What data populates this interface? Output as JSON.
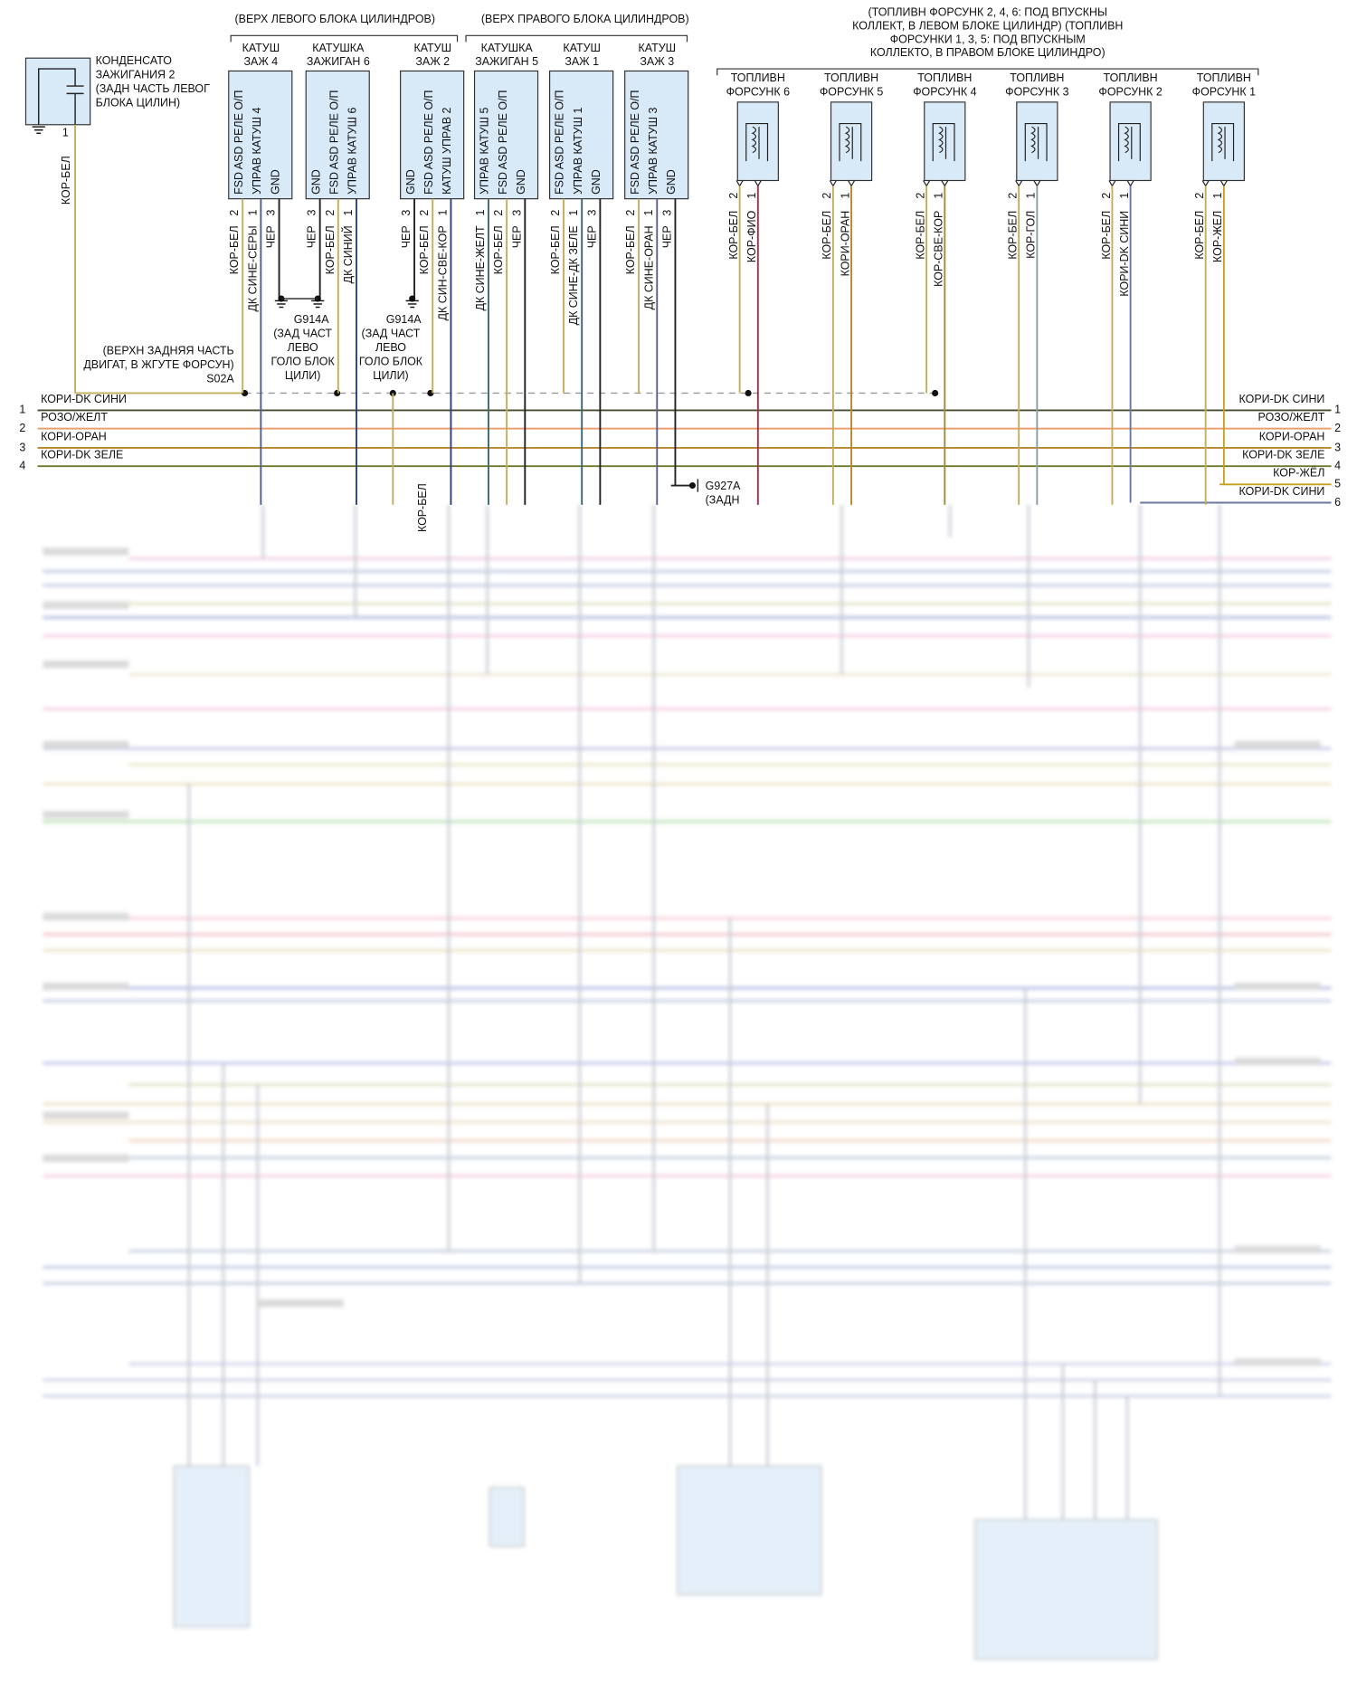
{
  "capacitor": {
    "label": [
      "КОНДЕНСАТО",
      "ЗАЖИГАНИЯ 2",
      "(ЗАДН ЧАСТЬ ЛЕВОГ",
      "БЛОКА ЦИЛИН)"
    ],
    "pin": "1",
    "wire": "КОР-БЕЛ",
    "color": "#c4ad5c"
  },
  "brackets": {
    "left_bank": "(ВЕРХ ЛЕВОГО БЛОКА ЦИЛИНДРОВ)",
    "right_bank": "(ВЕРХ ПРАВОГО БЛОКА ЦИЛИНДРОВ)",
    "injectors": [
      "(ТОПЛИВН ФОРСУНК 2, 4, 6: ПОД ВПУСКНЫ",
      "КОЛЛЕКТ, В ЛЕВОМ БЛОКЕ ЦИЛИНДР) (ТОПЛИВН",
      "ФОРСУНКИ 1, 3, 5: ПОД ВПУСКНЫМ",
      "КОЛЛЕКТО, В ПРАВОМ БЛОКЕ ЦИЛИНДРО)"
    ]
  },
  "coils": [
    {
      "name": [
        "КАТУШ",
        "ЗАЖ 4"
      ],
      "pins": [
        {
          "label": "FSD ASD РЕЛЕ О/П",
          "number": "2",
          "wire": "КОР-БЕЛ",
          "color": "#c4ad5c"
        },
        {
          "label": "УПРАВ КАТУШ 4",
          "number": "1",
          "wire": "ДК СИНЕ-СЕРЫ",
          "color": "#4a5c9c"
        },
        {
          "label": "GND",
          "number": "3",
          "wire": "ЧЕР",
          "color": "#222222"
        }
      ]
    },
    {
      "name": [
        "КАТУШКА",
        "ЗАЖИГАН 6"
      ],
      "pins": [
        {
          "label": "GND",
          "number": "3",
          "wire": "ЧЕР",
          "color": "#222222"
        },
        {
          "label": "FSD ASD РЕЛЕ О/П",
          "number": "2",
          "wire": "КОР-БЕЛ",
          "color": "#c4ad5c"
        },
        {
          "label": "УПРАВ КАТУШ 6",
          "number": "1",
          "wire": "ДК СИНИЙ",
          "color": "#2a3c8c"
        }
      ]
    },
    {
      "name": [
        "КАТУШ",
        "ЗАЖ 2"
      ],
      "pins": [
        {
          "label": "GND",
          "number": "3",
          "wire": "ЧЕР",
          "color": "#222222"
        },
        {
          "label": "FSD ASD РЕЛЕ О/П",
          "number": "2",
          "wire": "КОР-БЕЛ",
          "color": "#c4ad5c"
        },
        {
          "label": "КАТУШ УПРАВ 2",
          "number": "1",
          "wire": "ДК СИН-СВЕ-КОР",
          "color": "#2a3c8c"
        }
      ]
    },
    {
      "name": [
        "КАТУШКА",
        "ЗАЖИГАН 5"
      ],
      "pins": [
        {
          "label": "УПРАВ КАТУШ 5",
          "number": "1",
          "wire": "ДК СИНЕ-ЖЕЛТ",
          "color": "#3a6e6a"
        },
        {
          "label": "FSD ASD РЕЛЕ О/П",
          "number": "2",
          "wire": "КОР-БЕЛ",
          "color": "#c4ad5c"
        },
        {
          "label": "GND",
          "number": "3",
          "wire": "ЧЕР",
          "color": "#222222"
        }
      ]
    },
    {
      "name": [
        "КАТУШ",
        "ЗАЖ 1"
      ],
      "pins": [
        {
          "label": "FSD ASD РЕЛЕ О/П",
          "number": "2",
          "wire": "КОР-БЕЛ",
          "color": "#c4ad5c"
        },
        {
          "label": "УПРАВ КАТУШ 1",
          "number": "1",
          "wire": "ДК СИНЕ-ДК ЗЕЛЕ",
          "color": "#3a6478"
        },
        {
          "label": "GND",
          "number": "3",
          "wire": "ЧЕР",
          "color": "#222222"
        }
      ]
    },
    {
      "name": [
        "КАТУШ",
        "ЗАЖ 3"
      ],
      "pins": [
        {
          "label": "FSD ASD РЕЛЕ О/П",
          "number": "2",
          "wire": "КОР-БЕЛ",
          "color": "#c4ad5c"
        },
        {
          "label": "УПРАВ КАТУШ 3",
          "number": "1",
          "wire": "ДК СИНЕ-ОРАН",
          "color": "#5a5c98"
        },
        {
          "label": "GND",
          "number": "3",
          "wire": "ЧЕР",
          "color": "#222222"
        }
      ]
    }
  ],
  "injectors": [
    {
      "name": [
        "ТОПЛИВН",
        "ФОРСУНК 6"
      ],
      "pins": [
        {
          "number": "2",
          "wire": "КОР-БЕЛ",
          "color": "#c4ad5c"
        },
        {
          "number": "1",
          "wire": "КОР-ФИО",
          "color": "#a0304c"
        }
      ]
    },
    {
      "name": [
        "ТОПЛИВН",
        "ФОРСУНК 5"
      ],
      "pins": [
        {
          "number": "2",
          "wire": "КОР-БЕЛ",
          "color": "#c4ad5c"
        },
        {
          "number": "1",
          "wire": "КОРИ-ОРАН",
          "color": "#b8862c"
        }
      ]
    },
    {
      "name": [
        "ТОПЛИВН",
        "ФОРСУНК 4"
      ],
      "pins": [
        {
          "number": "2",
          "wire": "КОР-БЕЛ",
          "color": "#c4ad5c"
        },
        {
          "number": "1",
          "wire": "КОР-СВЕ-КОР",
          "color": "#a08a40"
        }
      ]
    },
    {
      "name": [
        "ТОПЛИВН",
        "ФОРСУНК 3"
      ],
      "pins": [
        {
          "number": "2",
          "wire": "КОР-БЕЛ",
          "color": "#c4ad5c"
        },
        {
          "number": "1",
          "wire": "КОР-ГОЛ",
          "color": "#8a9aa4"
        }
      ]
    },
    {
      "name": [
        "ТОПЛИВН",
        "ФОРСУНК 2"
      ],
      "pins": [
        {
          "number": "2",
          "wire": "КОР-БЕЛ",
          "color": "#c4ad5c"
        },
        {
          "number": "1",
          "wire": "КОРИ-DK СИНИ",
          "color": "#6a78a4"
        }
      ]
    },
    {
      "name": [
        "ТОПЛИВН",
        "ФОРСУНК 1"
      ],
      "pins": [
        {
          "number": "2",
          "wire": "КОР-БЕЛ",
          "color": "#c4ad5c"
        },
        {
          "number": "1",
          "wire": "КОР-ЖЕЛ",
          "color": "#c8a020"
        }
      ]
    }
  ],
  "grounds": [
    {
      "id": "G914A",
      "label": [
        "(ЗАД ЧАСТ",
        "ЛЕВО",
        "ГОЛО БЛОК",
        "ЦИЛИ)"
      ]
    },
    {
      "id": "G914A",
      "label": [
        "(ЗАД ЧАСТ",
        "ЛЕВО",
        "ГОЛО БЛОК",
        "ЦИЛИ)"
      ]
    },
    {
      "id": "G927A",
      "label": [
        "(ЗАДН"
      ]
    }
  ],
  "splice": {
    "label": [
      "(ВЕРХН ЗАДНЯЯ ЧАСТЬ",
      "ДВИГАТ, В ЖГУТЕ ФОРСУН)"
    ],
    "id": "S02A",
    "wire": "КОРИ-DK СИНИ"
  },
  "bus": [
    {
      "number": "1",
      "right": "КОРИ-DK СИНИ",
      "color": "#4a4a30"
    },
    {
      "number": "2",
      "left": "РОЗО/ЖЕЛТ",
      "right": "РОЗО/ЖЕЛТ",
      "color": "#e8a070"
    },
    {
      "number": "3",
      "left": "КОРИ-ОРАН",
      "right": "КОРИ-ОРАН",
      "color": "#b8862c"
    },
    {
      "number": "4",
      "left": "КОРИ-DK ЗЕЛЕ",
      "right": "КОРИ-DK ЗЕЛЕ",
      "color": "#6e7a2a"
    },
    {
      "number": "5",
      "right": "КОР-ЖЁЛ",
      "color": "#c8a020"
    },
    {
      "number": "6",
      "right": "КОРИ-DK СИНИ",
      "color": "#6a78a4"
    }
  ]
}
